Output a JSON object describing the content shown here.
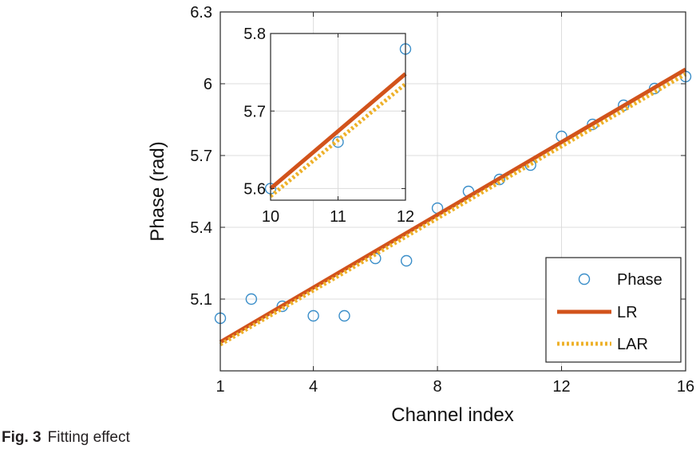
{
  "caption": {
    "label": "Fig. 3",
    "text": "Fitting effect"
  },
  "chart_data": [
    {
      "type": "line",
      "panel": "main",
      "xlabel": "Channel index",
      "ylabel": "Phase (rad)",
      "xlim": [
        1,
        16
      ],
      "ylim": [
        4.8,
        6.3
      ],
      "xticks": [
        1,
        4,
        8,
        12,
        16
      ],
      "yticks": [
        5.1,
        5.4,
        5.7,
        6,
        6.3
      ],
      "ytick_labels": [
        "5.1",
        "5.4",
        "5.7",
        "6",
        "6.3"
      ],
      "grid": true,
      "legend_position": "bottom-right",
      "series": [
        {
          "name": "Phase",
          "style": "markers",
          "color": "#3a8ec9",
          "x": [
            1,
            2,
            3,
            4,
            5,
            6,
            7,
            8,
            9,
            10,
            11,
            12,
            13,
            14,
            15,
            16
          ],
          "y": [
            5.02,
            5.1,
            5.07,
            5.03,
            5.03,
            5.27,
            5.26,
            5.48,
            5.55,
            5.6,
            5.66,
            5.78,
            5.83,
            5.91,
            5.98,
            6.03
          ]
        },
        {
          "name": "LR",
          "style": "solid",
          "color": "#d2531b",
          "x": [
            1,
            16
          ],
          "y": [
            4.92,
            6.06
          ]
        },
        {
          "name": "LAR",
          "style": "dotted",
          "color": "#eeb12a",
          "x": [
            1,
            16
          ],
          "y": [
            4.91,
            6.04
          ]
        }
      ]
    },
    {
      "type": "line",
      "panel": "inset",
      "xlim": [
        10,
        12
      ],
      "ylim": [
        5.585,
        5.8
      ],
      "xticks": [
        10,
        11,
        12
      ],
      "yticks": [
        5.6,
        5.7,
        5.8
      ],
      "ytick_labels": [
        "5.6",
        "5.7",
        "5.8"
      ],
      "grid": true,
      "series": [
        {
          "name": "Phase",
          "style": "markers",
          "color": "#3a8ec9",
          "x": [
            10,
            11,
            12
          ],
          "y": [
            5.6,
            5.66,
            5.78
          ]
        },
        {
          "name": "LR",
          "style": "solid",
          "color": "#d2531b",
          "x": [
            10,
            12
          ],
          "y": [
            5.6,
            5.748
          ]
        },
        {
          "name": "LAR",
          "style": "dotted",
          "color": "#eeb12a",
          "x": [
            10,
            12
          ],
          "y": [
            5.59,
            5.735
          ]
        }
      ]
    }
  ]
}
